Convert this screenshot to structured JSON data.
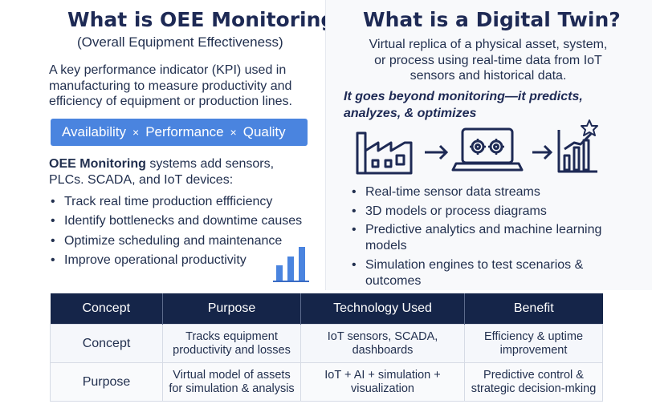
{
  "left": {
    "title": "What is OEE Monitoring?",
    "subtitle": "(Overall Equipment Effectiveness)",
    "description_lines": [
      "A key performance indicator (KPI) used in",
      "manufacturing to measure productivity and",
      "efficiency of equipment or production lines."
    ],
    "formula": {
      "terms": [
        "Availability",
        "Performance",
        "Quality"
      ],
      "operator": "×",
      "color": "#4a84df"
    },
    "systems_bold": "OEE Monitoring",
    "systems_line1_rest": " systems add sensors,",
    "systems_line2": "PLCs. SCADA, and IoT devices:",
    "bullets": [
      "Track real time production effficiency",
      "Identify bottlenecks and downtime causes",
      "Optimize scheduling and maintenance",
      "Improve operational productivity"
    ],
    "icon": "bar-chart-icon"
  },
  "right": {
    "title": "What is a Digital Twin?",
    "description_lines": [
      "Virtual replica of a physical asset, system,",
      "or process using real-time data from IoT",
      "sensors and historical data."
    ],
    "beyond_lines": [
      "It goes beyond monitoring—it predicts,",
      "analyzes, & optimizes"
    ],
    "flow_icons": [
      "factory-icon",
      "arrow-right-icon",
      "laptop-gears-icon",
      "arrow-right-icon",
      "growth-chart-star-icon"
    ],
    "bullets": [
      "Real-time sensor data streams",
      "3D models or process diagrams",
      "Predictive analytics and machine learning models",
      "Simulation engines to test scenarios & outcomes"
    ]
  },
  "table": {
    "headers": [
      "Concept",
      "Purpose",
      "Technology Used",
      "Benefit"
    ],
    "rows": [
      [
        "Concept",
        "Tracks equipment productivity and losses",
        "IoT sensors, SCADA, dashboards",
        "Efficiency & uptime improvement"
      ],
      [
        "Purpose",
        "Virtual model of assets for simulation & analysis",
        "IoT + AI + simulation + visualization",
        "Predictive control & strategic decision-mking"
      ]
    ],
    "header_color": "#152549"
  }
}
